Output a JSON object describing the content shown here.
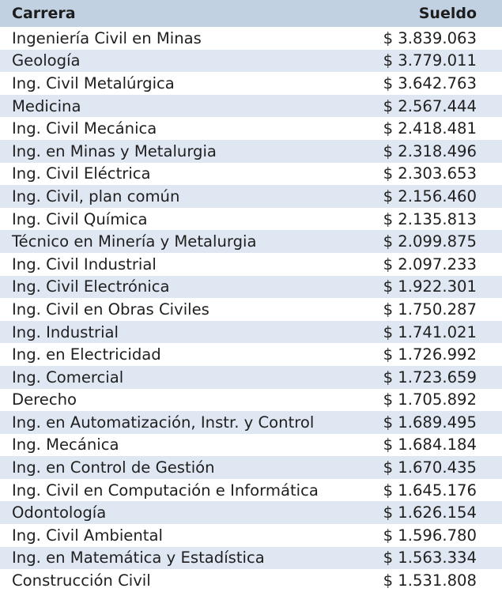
{
  "table": {
    "headers": {
      "career": "Carrera",
      "salary": "Sueldo"
    },
    "rows": [
      {
        "career": "Ingeniería Civil en Minas",
        "salary": "$ 3.839.063"
      },
      {
        "career": "Geología",
        "salary": "$ 3.779.011"
      },
      {
        "career": "Ing. Civil Metalúrgica",
        "salary": "$ 3.642.763"
      },
      {
        "career": "Medicina",
        "salary": "$ 2.567.444"
      },
      {
        "career": "Ing. Civil Mecánica",
        "salary": "$ 2.418.481"
      },
      {
        "career": "Ing. en Minas y Metalurgia",
        "salary": "$ 2.318.496"
      },
      {
        "career": "Ing. Civil Eléctrica",
        "salary": "$ 2.303.653"
      },
      {
        "career": "Ing. Civil, plan común",
        "salary": "$ 2.156.460"
      },
      {
        "career": "Ing. Civil Química",
        "salary": "$ 2.135.813"
      },
      {
        "career": "Técnico en Minería y Metalurgia",
        "salary": "$ 2.099.875"
      },
      {
        "career": "Ing. Civil Industrial",
        "salary": "$ 2.097.233"
      },
      {
        "career": "Ing. Civil Electrónica",
        "salary": "$ 1.922.301"
      },
      {
        "career": "Ing. Civil en Obras Civiles",
        "salary": "$ 1.750.287"
      },
      {
        "career": "Ing. Industrial",
        "salary": "$ 1.741.021"
      },
      {
        "career": "Ing. en Electricidad",
        "salary": "$ 1.726.992"
      },
      {
        "career": "Ing. Comercial",
        "salary": "$ 1.723.659"
      },
      {
        "career": "Derecho",
        "salary": "$ 1.705.892"
      },
      {
        "career": "Ing. en Automatización, Instr. y Control",
        "salary": "$ 1.689.495"
      },
      {
        "career": "Ing. Mecánica",
        "salary": "$ 1.684.184"
      },
      {
        "career": "Ing. en Control de Gestión",
        "salary": "$ 1.670.435"
      },
      {
        "career": "Ing. Civil en Computación e Informática",
        "salary": "$ 1.645.176"
      },
      {
        "career": "Odontología",
        "salary": "$ 1.626.154"
      },
      {
        "career": "Ing. Civil Ambiental",
        "salary": "$ 1.596.780"
      },
      {
        "career": "Ing. en Matemática y Estadística",
        "salary": "$ 1.563.334"
      },
      {
        "career": "Construcción Civil",
        "salary": "$ 1.531.808"
      }
    ]
  },
  "colors": {
    "header_background": "#c2d1e2",
    "stripe_background": "#dfe7f2",
    "text": "#1f1f1f"
  }
}
